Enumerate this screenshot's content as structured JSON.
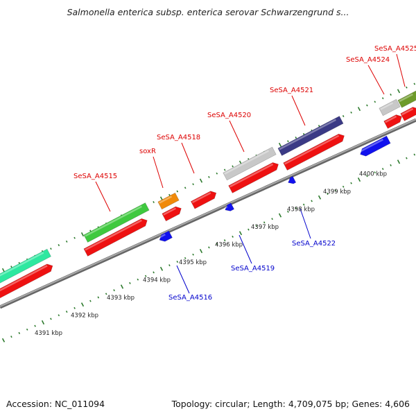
{
  "header": {
    "title": "Salmonella enterica subsp. enterica serovar Schwarzengrund s..."
  },
  "footer": {
    "accession": "Accession: NC_011094",
    "stats": "Topology: circular; Length: 4,709,075 bp; Genes: 4,606"
  },
  "ruler": [
    "4391 kbp",
    "4392 kbp",
    "4393 kbp",
    "4394 kbp",
    "4395 kbp",
    "4396 kbp",
    "4397 kbp",
    "4398 kbp",
    "4399 kbp",
    "4400 kbp"
  ],
  "gene_labels_forward": [
    "SeSA_A4515",
    "soxR",
    "SeSA_A4518",
    "SeSA_A4520",
    "SeSA_A4521",
    "SeSA_A4524",
    "SeSA_A4525"
  ],
  "gene_labels_reverse": [
    "SeSA_A4516",
    "SeSA_A4519",
    "SeSA_A4522"
  ],
  "colors": {
    "cds": "#ee1111",
    "reverse_cds": "#1111ee",
    "label_forward": "#dd0000",
    "label_reverse": "#0000cc",
    "backbone": "#888888",
    "tick": "#2d7a2d",
    "feature_teal": "#2ee8a0",
    "feature_green": "#3fc93f",
    "feature_orange": "#f08a0a",
    "feature_grey": "#c8c8c8",
    "feature_navy": "#3b3a85",
    "feature_olive": "#6e9a2a"
  }
}
